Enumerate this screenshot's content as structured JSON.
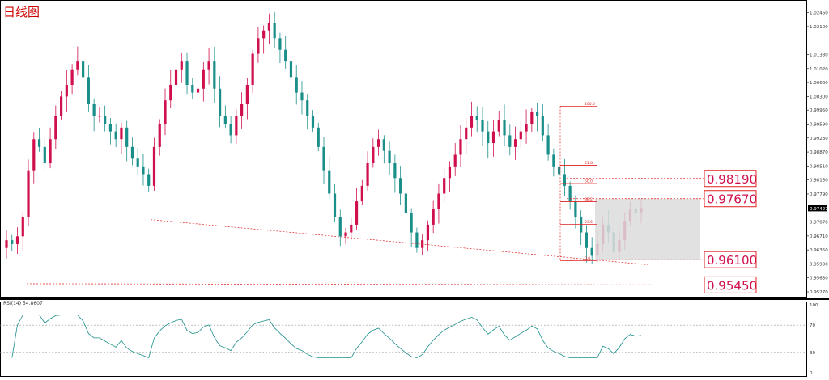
{
  "chart_data": {
    "type": "candlestick",
    "title": "日线图",
    "price_axis": {
      "ticks": [
        "1.02460",
        "1.02100",
        "1.01380",
        "1.01020",
        "1.00660",
        "1.00300",
        "0.99950",
        "0.99590",
        "0.99230",
        "0.98870",
        "0.98510",
        "0.98150",
        "0.97790",
        "0.97427",
        "0.97070",
        "0.96710",
        "0.96350",
        "0.95990",
        "0.95630",
        "0.95270"
      ],
      "current_price": "0.97427",
      "ylim": [
        0.9525,
        1.0266
      ]
    },
    "levels": [
      {
        "label": "0.98190",
        "value": 0.9819
      },
      {
        "label": "0.97670",
        "value": 0.9767
      },
      {
        "label": "0.96100",
        "value": 0.961
      },
      {
        "label": "0.95450",
        "value": 0.9545
      }
    ],
    "fibonacci": {
      "high": 1.0005,
      "low": 0.9607,
      "labels": [
        "100.0",
        "61.8",
        "50.0",
        "38.2",
        "23.6",
        "0.0"
      ]
    },
    "close_series": [
      0.966,
      0.965,
      0.967,
      0.972,
      0.984,
      0.992,
      0.99,
      0.986,
      0.992,
      0.998,
      1.003,
      1.006,
      1.01,
      1.012,
      1.008,
      1.001,
      0.998,
      0.998,
      0.996,
      0.994,
      0.992,
      0.995,
      0.99,
      0.987,
      0.985,
      0.983,
      0.98,
      0.99,
      0.996,
      1.002,
      1.006,
      1.01,
      1.012,
      1.006,
      1.004,
      1.005,
      1.01,
      1.012,
      1.005,
      0.998,
      0.996,
      0.993,
      0.998,
      1.001,
      1.006,
      1.014,
      1.018,
      1.02,
      1.022,
      1.018,
      1.015,
      1.012,
      1.008,
      1.004,
      1.002,
      0.998,
      0.995,
      0.99,
      0.984,
      0.978,
      0.972,
      0.967,
      0.968,
      0.97,
      0.976,
      0.98,
      0.986,
      0.99,
      0.992,
      0.989,
      0.986,
      0.982,
      0.978,
      0.973,
      0.968,
      0.964,
      0.966,
      0.97,
      0.974,
      0.978,
      0.982,
      0.985,
      0.988,
      0.992,
      0.995,
      0.998,
      0.997,
      0.994,
      0.991,
      0.994,
      0.997,
      0.993,
      0.99,
      0.992,
      0.994,
      0.996,
      0.999,
      0.998,
      0.993,
      0.988,
      0.985,
      0.983,
      0.98,
      0.976,
      0.972,
      0.968,
      0.964,
      0.962,
      0.965,
      0.97,
      0.968,
      0.963,
      0.966,
      0.971,
      0.974,
      0.973,
      0.9743
    ],
    "rsi": {
      "label": "RSI(14) 54.8607",
      "value": 54.8607,
      "levels": [
        70,
        30
      ],
      "axis_ticks": [
        "100",
        "70",
        "30",
        "0"
      ]
    }
  }
}
